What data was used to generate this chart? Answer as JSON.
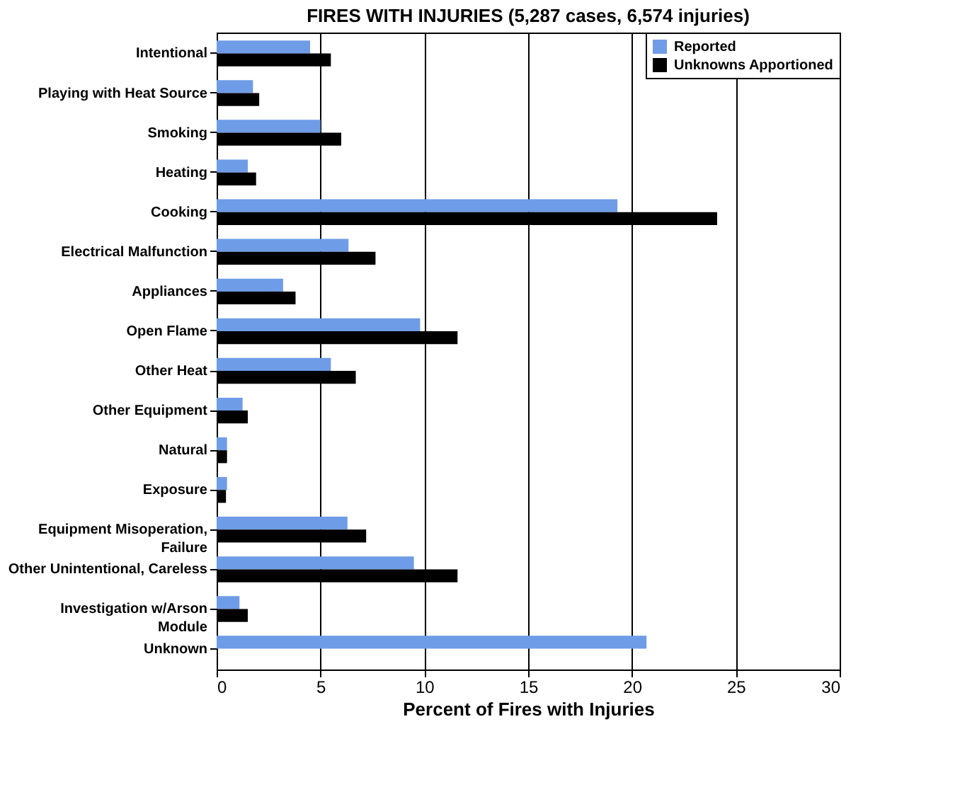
{
  "chart_data": {
    "type": "bar",
    "orientation": "horizontal",
    "title": "FIRES WITH INJURIES (5,287 cases, 6,574 injuries)",
    "xlabel": "Percent of Fires with Injuries",
    "categories": [
      "Intentional",
      "Playing with Heat Source",
      "Smoking",
      "Heating",
      "Cooking",
      "Electrical Malfunction",
      "Appliances",
      "Open Flame",
      "Other Heat",
      "Other Equipment",
      "Natural",
      "Exposure",
      "Equipment Misoperation,\nFailure",
      "Other Unintentional, Careless",
      "Investigation w/Arson\nModule",
      "Unknown"
    ],
    "series": [
      {
        "name": "Reported",
        "color": "#6f9ce6",
        "values": [
          4.5,
          1.75,
          5.0,
          1.5,
          19.3,
          6.35,
          3.2,
          9.8,
          5.5,
          1.25,
          0.5,
          0.5,
          6.3,
          9.5,
          1.1,
          20.7
        ]
      },
      {
        "name": "Unknowns Apportioned",
        "color": "#000000",
        "values": [
          5.5,
          2.05,
          6.0,
          1.9,
          24.1,
          7.65,
          3.8,
          11.6,
          6.7,
          1.5,
          0.5,
          0.45,
          7.2,
          11.6,
          1.5,
          null
        ]
      }
    ],
    "xlim": [
      0,
      30
    ],
    "xticks": [
      0,
      5,
      10,
      15,
      20,
      25,
      30
    ],
    "grid": "x",
    "legend": "top right"
  }
}
